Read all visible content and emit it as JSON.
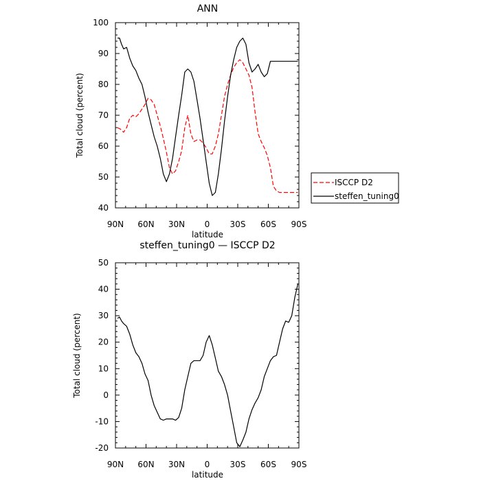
{
  "chart_data": [
    {
      "type": "line",
      "title": "ANN",
      "xlabel": "latitude",
      "ylabel": "Total cloud (percent)",
      "xlim": [
        90,
        -90
      ],
      "ylim": [
        40,
        100
      ],
      "xticks": [
        {
          "value": 90,
          "label": "90N"
        },
        {
          "value": 60,
          "label": "60N"
        },
        {
          "value": 30,
          "label": "30N"
        },
        {
          "value": 0,
          "label": "0"
        },
        {
          "value": -30,
          "label": "30S"
        },
        {
          "value": -60,
          "label": "60S"
        },
        {
          "value": -90,
          "label": "90S"
        }
      ],
      "yticks": [
        40,
        50,
        60,
        70,
        80,
        90,
        100
      ],
      "legend": {
        "placement": "right"
      },
      "series": [
        {
          "name": "ISCCP D2",
          "color": "#ff0000",
          "dash": "dashed",
          "x": [
            88,
            85,
            82,
            79,
            76,
            73,
            70,
            67,
            64,
            61,
            58,
            55,
            52,
            49,
            46,
            43,
            40,
            37,
            34,
            31,
            28,
            25,
            22,
            19,
            16,
            13,
            10,
            7,
            4,
            1,
            -2,
            -5,
            -8,
            -11,
            -14,
            -17,
            -20,
            -23,
            -26,
            -29,
            -32,
            -35,
            -38,
            -41,
            -44,
            -47,
            -50,
            -53,
            -56,
            -59,
            -62,
            -65,
            -68,
            -71,
            -74,
            -77,
            -80,
            -83,
            -86,
            -89
          ],
          "y": [
            66,
            65.5,
            64.5,
            66,
            69,
            70,
            69.5,
            70.5,
            72,
            73.5,
            75.5,
            75,
            73.5,
            70,
            66.5,
            62.5,
            58,
            53,
            51,
            52,
            55,
            58.5,
            66,
            70,
            64,
            61.5,
            62,
            62,
            61,
            59.5,
            57.5,
            57.5,
            60,
            64,
            70,
            76,
            80,
            83,
            85.5,
            87,
            88,
            87,
            85,
            83,
            79,
            71,
            64,
            61.5,
            59.5,
            57,
            53,
            47,
            45.5,
            45,
            45,
            45,
            45,
            45,
            45,
            45
          ]
        },
        {
          "name": "steffen_tuning0",
          "color": "#000000",
          "dash": "solid",
          "x": [
            88,
            86,
            84,
            82,
            79,
            76,
            73,
            70,
            67,
            64,
            61,
            58,
            55,
            52,
            49,
            46,
            43,
            40,
            37,
            34,
            31,
            28,
            25,
            22,
            19,
            16,
            13,
            10,
            7,
            4,
            1,
            -2,
            -5,
            -8,
            -11,
            -14,
            -17,
            -20,
            -23,
            -26,
            -29,
            -32,
            -35,
            -38,
            -41,
            -44,
            -47,
            -50,
            -53,
            -56,
            -59,
            -62,
            -65,
            -68,
            -71,
            -74,
            -77,
            -80,
            -83,
            -86,
            -89
          ],
          "y": [
            95,
            95,
            93,
            91.5,
            92,
            88.5,
            86,
            84.5,
            82,
            80,
            76,
            71,
            67,
            63,
            60,
            56,
            51,
            48.5,
            51,
            56,
            63,
            70,
            76.5,
            84,
            85,
            84,
            81,
            75,
            69,
            62,
            55,
            48,
            44,
            45,
            51,
            59,
            68,
            76,
            83,
            88,
            92,
            94,
            95,
            93,
            87,
            84,
            85,
            86.5,
            84,
            82.5,
            83.5,
            87.5,
            87.5,
            87.5,
            87.5,
            87.5,
            87.5,
            87.5,
            87.5,
            87.5,
            87.5
          ]
        }
      ]
    },
    {
      "type": "line",
      "title": "steffen_tuning0 — ISCCP D2",
      "xlabel": "latitude",
      "ylabel": "Total cloud (percent)",
      "xlim": [
        90,
        -90
      ],
      "ylim": [
        -20,
        50
      ],
      "xticks": [
        {
          "value": 90,
          "label": "90N"
        },
        {
          "value": 60,
          "label": "60N"
        },
        {
          "value": 30,
          "label": "30N"
        },
        {
          "value": 0,
          "label": "0"
        },
        {
          "value": -30,
          "label": "30S"
        },
        {
          "value": -60,
          "label": "60S"
        },
        {
          "value": -90,
          "label": "90S"
        }
      ],
      "yticks": [
        -20,
        -10,
        0,
        10,
        20,
        30,
        40,
        50
      ],
      "series": [
        {
          "color": "#000000",
          "dash": "solid",
          "x": [
            88,
            86,
            84,
            82,
            79,
            76,
            73,
            70,
            67,
            64,
            61,
            58,
            55,
            52,
            49,
            46,
            43,
            40,
            37,
            34,
            31,
            28,
            25,
            22,
            19,
            16,
            13,
            10,
            7,
            4,
            1,
            -2,
            -5,
            -8,
            -11,
            -14,
            -17,
            -20,
            -23,
            -26,
            -29,
            -32,
            -35,
            -38,
            -41,
            -44,
            -47,
            -50,
            -53,
            -56,
            -59,
            -62,
            -65,
            -68,
            -71,
            -74,
            -77,
            -80,
            -83,
            -86,
            -89
          ],
          "y": [
            29,
            29.5,
            28,
            27,
            26,
            23,
            19,
            16,
            14.5,
            12,
            8,
            5.5,
            0,
            -4,
            -6.5,
            -9,
            -9.5,
            -9,
            -9,
            -9,
            -9.5,
            -8.5,
            -5,
            2,
            7,
            12,
            13,
            13,
            13,
            15,
            20,
            22.5,
            19,
            14,
            9,
            7,
            4,
            0,
            -6,
            -12,
            -18,
            -19.5,
            -17,
            -14,
            -9,
            -5.5,
            -3,
            -1,
            2,
            7,
            10,
            13,
            14.5,
            15,
            20,
            25,
            28,
            27.5,
            30,
            37,
            42
          ]
        }
      ]
    }
  ],
  "colors": {
    "axis": "#000000",
    "isccp": "#ff0000",
    "model": "#000000"
  }
}
